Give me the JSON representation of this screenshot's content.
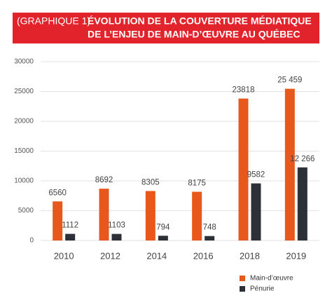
{
  "chart_data": {
    "type": "bar",
    "label": "(GRAPHIQUE 1)",
    "title": [
      "ÉVOLUTION DE LA COUVERTURE MÉDIATIQUE",
      "DE  L’ENJEU DE MAIN-D’ŒUVRE AU QUÉBEC"
    ],
    "categories": [
      "2010",
      "2012",
      "2014",
      "2016",
      "2018",
      "2019"
    ],
    "series": [
      {
        "name": "Main-d’œuvre",
        "color": "#e8581c",
        "values": [
          6560,
          8692,
          8305,
          8175,
          23818,
          25459
        ],
        "value_labels": [
          "6560",
          "8692",
          "8305",
          "8175",
          "23818",
          "25 459"
        ]
      },
      {
        "name": "Pénurie",
        "color": "#2e3037",
        "values": [
          1112,
          1103,
          794,
          748,
          9582,
          12266
        ],
        "value_labels": [
          "1112",
          "1103",
          "794",
          "748",
          "9582",
          "12 266"
        ]
      }
    ],
    "ylim": [
      0,
      30000
    ],
    "yticks": [
      0,
      5000,
      10000,
      15000,
      20000,
      25000,
      30000
    ],
    "grid": true
  }
}
